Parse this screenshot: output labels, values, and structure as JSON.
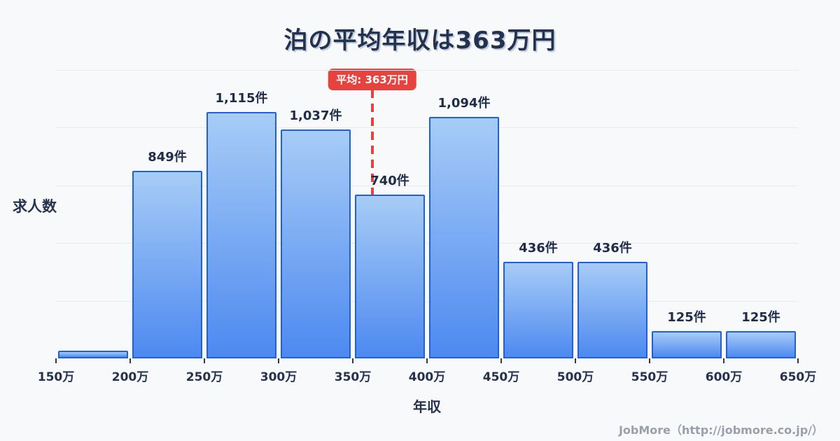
{
  "title": "泊の平均年収は363万円",
  "chart_data": {
    "type": "bar",
    "title": "泊の平均年収は363万円",
    "xlabel": "年収",
    "ylabel": "求人数",
    "x_tick_labels": [
      "150万",
      "200万",
      "250万",
      "300万",
      "350万",
      "400万",
      "450万",
      "500万",
      "550万",
      "600万",
      "650万"
    ],
    "bin_ranges": [
      "150万-200万",
      "200万-250万",
      "250万-300万",
      "300万-350万",
      "350万-400万",
      "400万-450万",
      "450万-500万",
      "500万-550万",
      "550万-600万",
      "600万-650万"
    ],
    "values": [
      35,
      849,
      1115,
      1037,
      740,
      1094,
      436,
      436,
      125,
      125
    ],
    "bar_labels": [
      "",
      "849件",
      "1,115件",
      "1,037件",
      "740件",
      "1,094件",
      "436件",
      "436件",
      "125件",
      "125件"
    ],
    "average": {
      "value": 363,
      "label": "平均: 363万円"
    },
    "x_range": [
      150,
      650
    ],
    "ylim": [
      0,
      1305
    ],
    "gridline_intervals": 5,
    "grid": "horizontal",
    "legend": "none",
    "colors": {
      "background": "#f8f9fb",
      "title": "#233250",
      "text": "#1f2c49",
      "grid": "#e5e9f0",
      "bar_fill_top": "#a7ccf6",
      "bar_fill_bottom": "#4d89f0",
      "bar_border": "#2160dd",
      "average_red": "#e8423e",
      "badge_text": "#ffffff",
      "tick": "#2b3a55",
      "footer": "#9aa0ab"
    }
  },
  "footer": {
    "credit": "JobMore（http://jobmore.co.jp/）"
  }
}
